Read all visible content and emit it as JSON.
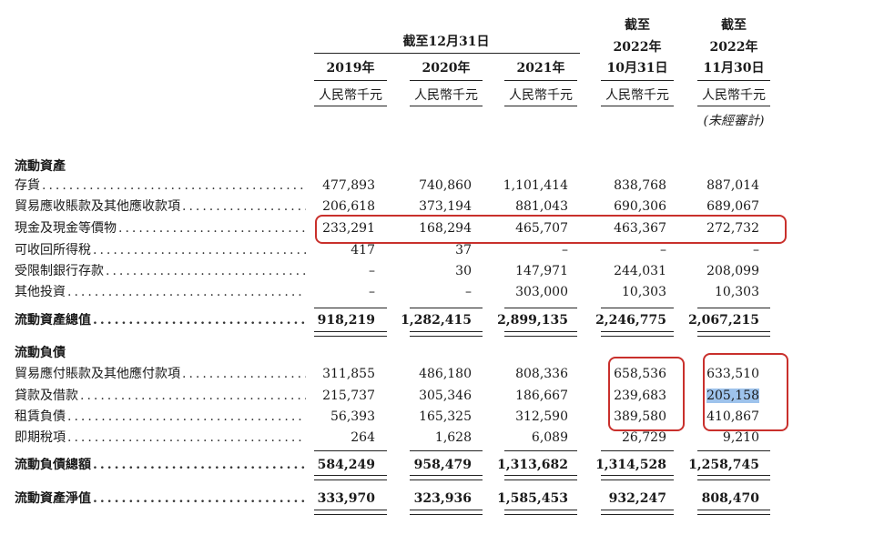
{
  "header": {
    "group_label": "截至12月31日",
    "columns": [
      {
        "line1": "",
        "line2": "",
        "year": "2019年",
        "unit": "人民幣千元",
        "note": ""
      },
      {
        "line1": "",
        "line2": "",
        "year": "2020年",
        "unit": "人民幣千元",
        "note": ""
      },
      {
        "line1": "",
        "line2": "",
        "year": "2021年",
        "unit": "人民幣千元",
        "note": ""
      },
      {
        "line1": "截至",
        "line2": "2022年",
        "year": "10月31日",
        "unit": "人民幣千元",
        "note": ""
      },
      {
        "line1": "截至",
        "line2": "2022年",
        "year": "11月30日",
        "unit": "人民幣千元",
        "note": "(未經審計)"
      }
    ]
  },
  "sections": {
    "current_assets": "流動資產",
    "current_liabilities": "流動負債"
  },
  "rows": [
    {
      "label": "存貨",
      "values": [
        "477,893",
        "740,860",
        "1,101,414",
        "838,768",
        "887,014"
      ]
    },
    {
      "label": "貿易應收賬款及其他應收款項",
      "values": [
        "206,618",
        "373,194",
        "881,043",
        "690,306",
        "689,067"
      ]
    },
    {
      "label": "現金及現金等價物",
      "values": [
        "233,291",
        "168,294",
        "465,707",
        "463,367",
        "272,732"
      ]
    },
    {
      "label": "可收回所得稅",
      "values": [
        "417",
        "37",
        "–",
        "–",
        "–"
      ]
    },
    {
      "label": "受限制銀行存款",
      "values": [
        "–",
        "30",
        "147,971",
        "244,031",
        "208,099"
      ]
    },
    {
      "label": "其他投資",
      "values": [
        "–",
        "–",
        "303,000",
        "10,303",
        "10,303"
      ]
    },
    {
      "label": "流動資產總值",
      "values": [
        "918,219",
        "1,282,415",
        "2,899,135",
        "2,246,775",
        "2,067,215"
      ]
    },
    {
      "label": "貿易應付賬款及其他應付款項",
      "values": [
        "311,855",
        "486,180",
        "808,336",
        "658,536",
        "633,510"
      ]
    },
    {
      "label": "貸款及借款",
      "values": [
        "215,737",
        "305,346",
        "186,667",
        "239,683",
        "205,158"
      ]
    },
    {
      "label": "租賃負債",
      "values": [
        "56,393",
        "165,325",
        "312,590",
        "389,580",
        "410,867"
      ]
    },
    {
      "label": "即期稅項",
      "values": [
        "264",
        "1,628",
        "6,089",
        "26,729",
        "9,210"
      ]
    },
    {
      "label": "流動負債總額",
      "values": [
        "584,249",
        "958,479",
        "1,313,682",
        "1,314,528",
        "1,258,745"
      ]
    },
    {
      "label": "流動資產淨值",
      "values": [
        "333,970",
        "323,936",
        "1,585,453",
        "932,247",
        "808,470"
      ]
    }
  ],
  "dots": "............................................................",
  "colors": {
    "highlight_box": "#c9302c",
    "selection": "#9ec3ec"
  }
}
